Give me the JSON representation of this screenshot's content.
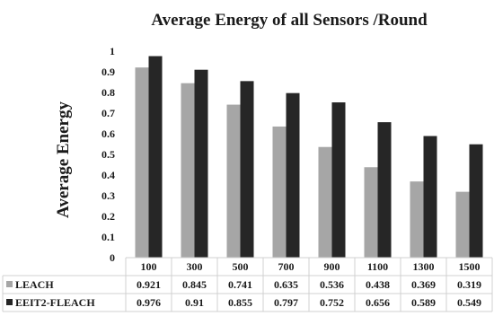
{
  "chart_data": {
    "type": "bar",
    "title": "Average Energy of all Sensors /Round",
    "ylabel": "Average Energy",
    "xlabel": "",
    "categories": [
      "100",
      "300",
      "500",
      "700",
      "900",
      "1100",
      "1300",
      "1500"
    ],
    "series": [
      {
        "name": "LEACH",
        "color": "#a6a6a6",
        "values": [
          0.921,
          0.845,
          0.741,
          0.635,
          0.536,
          0.438,
          0.369,
          0.319
        ]
      },
      {
        "name": "EEIT2-FLEACH",
        "color": "#262626",
        "values": [
          0.976,
          0.91,
          0.855,
          0.797,
          0.752,
          0.656,
          0.589,
          0.549
        ]
      }
    ],
    "ylim": [
      0,
      1
    ],
    "yticks": [
      "0",
      "0.1",
      "0.2",
      "0.3",
      "0.4",
      "0.5",
      "0.6",
      "0.7",
      "0.8",
      "0.9",
      "1"
    ],
    "grid": false,
    "legend": "data-table"
  }
}
